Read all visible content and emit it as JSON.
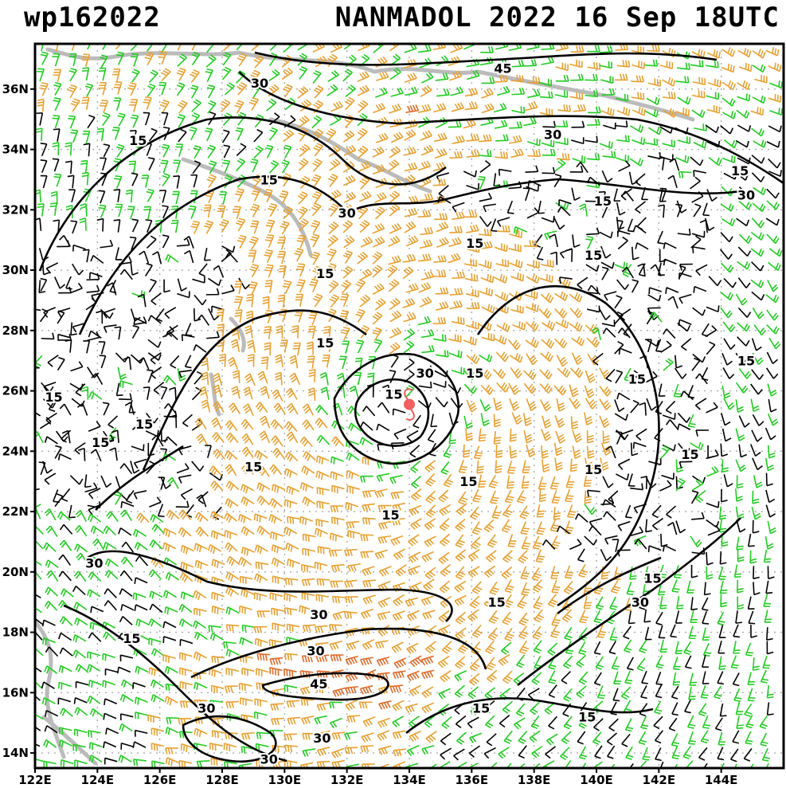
{
  "header": {
    "storm_id": "wp162022",
    "storm_label": "NANMADOL 2022 16 Sep 18UTC"
  },
  "map": {
    "lon_min": 122,
    "lon_max": 146,
    "lat_min": 13.5,
    "lat_max": 37.5,
    "lat_ticks": [
      {
        "value": 14,
        "label": "14N"
      },
      {
        "value": 16,
        "label": "16N"
      },
      {
        "value": 18,
        "label": "18N"
      },
      {
        "value": 20,
        "label": "20N"
      },
      {
        "value": 22,
        "label": "22N"
      },
      {
        "value": 24,
        "label": "24N"
      },
      {
        "value": 26,
        "label": "26N"
      },
      {
        "value": 28,
        "label": "28N"
      },
      {
        "value": 30,
        "label": "30N"
      },
      {
        "value": 32,
        "label": "32N"
      },
      {
        "value": 34,
        "label": "34N"
      },
      {
        "value": 36,
        "label": "36N"
      }
    ],
    "lon_ticks": [
      {
        "value": 122,
        "label": "122E"
      },
      {
        "value": 124,
        "label": "124E"
      },
      {
        "value": 126,
        "label": "126E"
      },
      {
        "value": 128,
        "label": "128E"
      },
      {
        "value": 130,
        "label": "130E"
      },
      {
        "value": 132,
        "label": "132E"
      },
      {
        "value": 134,
        "label": "134E"
      },
      {
        "value": 136,
        "label": "136E"
      },
      {
        "value": 138,
        "label": "138E"
      },
      {
        "value": 140,
        "label": "140E"
      },
      {
        "value": 142,
        "label": "142E"
      },
      {
        "value": 144,
        "label": "144E"
      }
    ],
    "storm_center": {
      "lon": 134.0,
      "lat": 25.55
    },
    "contour_labels": [
      {
        "text": "45",
        "lon": 137.0,
        "lat": 36.7
      },
      {
        "text": "30",
        "lon": 129.2,
        "lat": 36.2
      },
      {
        "text": "15",
        "lon": 125.3,
        "lat": 34.3
      },
      {
        "text": "15",
        "lon": 129.5,
        "lat": 33.0
      },
      {
        "text": "30",
        "lon": 132.0,
        "lat": 31.9
      },
      {
        "text": "30",
        "lon": 138.6,
        "lat": 34.5
      },
      {
        "text": "15",
        "lon": 144.6,
        "lat": 33.3
      },
      {
        "text": "30",
        "lon": 144.8,
        "lat": 32.5
      },
      {
        "text": "15",
        "lon": 140.2,
        "lat": 32.3
      },
      {
        "text": "15",
        "lon": 136.1,
        "lat": 30.9
      },
      {
        "text": "15",
        "lon": 139.9,
        "lat": 30.5
      },
      {
        "text": "15",
        "lon": 131.3,
        "lat": 29.9
      },
      {
        "text": "15",
        "lon": 131.3,
        "lat": 27.6
      },
      {
        "text": "15",
        "lon": 122.6,
        "lat": 25.8
      },
      {
        "text": "30",
        "lon": 134.5,
        "lat": 26.6
      },
      {
        "text": "15",
        "lon": 136.1,
        "lat": 26.6
      },
      {
        "text": "15",
        "lon": 133.5,
        "lat": 25.9
      },
      {
        "text": "15",
        "lon": 141.3,
        "lat": 26.4
      },
      {
        "text": "15",
        "lon": 144.8,
        "lat": 27.0
      },
      {
        "text": "15",
        "lon": 125.5,
        "lat": 24.9
      },
      {
        "text": "15",
        "lon": 124.1,
        "lat": 24.3
      },
      {
        "text": "15",
        "lon": 129.0,
        "lat": 23.5
      },
      {
        "text": "15",
        "lon": 135.9,
        "lat": 23.0
      },
      {
        "text": "15",
        "lon": 139.9,
        "lat": 23.4
      },
      {
        "text": "15",
        "lon": 143.0,
        "lat": 23.9
      },
      {
        "text": "15",
        "lon": 133.4,
        "lat": 21.9
      },
      {
        "text": "30",
        "lon": 123.9,
        "lat": 20.3
      },
      {
        "text": "15",
        "lon": 141.8,
        "lat": 19.8
      },
      {
        "text": "30",
        "lon": 141.4,
        "lat": 19.0
      },
      {
        "text": "15",
        "lon": 136.8,
        "lat": 19.0
      },
      {
        "text": "30",
        "lon": 131.1,
        "lat": 18.6
      },
      {
        "text": "15",
        "lon": 125.1,
        "lat": 17.8
      },
      {
        "text": "30",
        "lon": 131.0,
        "lat": 17.4
      },
      {
        "text": "45",
        "lon": 131.1,
        "lat": 16.3
      },
      {
        "text": "30",
        "lon": 127.5,
        "lat": 15.5
      },
      {
        "text": "15",
        "lon": 136.3,
        "lat": 15.5
      },
      {
        "text": "15",
        "lon": 139.7,
        "lat": 15.2
      },
      {
        "text": "30",
        "lon": 131.2,
        "lat": 14.5
      },
      {
        "text": "30",
        "lon": 129.5,
        "lat": 13.8
      }
    ]
  },
  "colors": {
    "barb_weak": "#000000",
    "barb_moderate": "#22cc22",
    "barb_strong": "#e8a030",
    "barb_very_strong": "#e06a28",
    "coastline": "#bbbbbb",
    "grid": "#aaaaaa",
    "storm_center": "#f06060"
  }
}
